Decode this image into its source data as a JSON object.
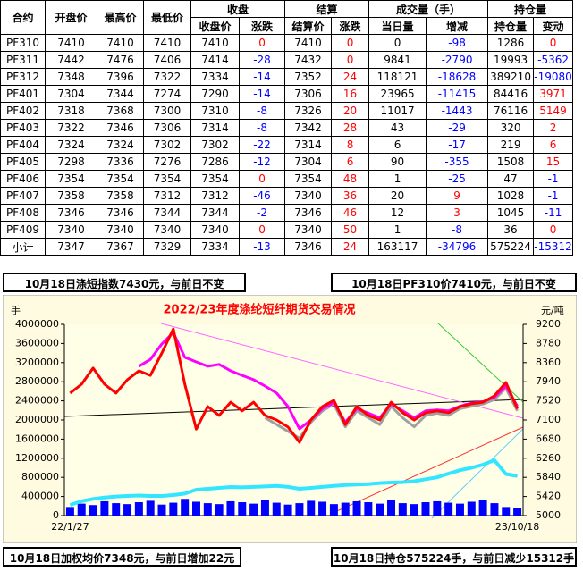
{
  "table": {
    "header_top": [
      "合约",
      "开盘价",
      "最高价",
      "最低价",
      "收盘",
      "结算",
      "成交量（手）",
      "持仓量"
    ],
    "header_sub": [
      "收盘价",
      "涨跌",
      "结算价",
      "涨跌",
      "当日量",
      "增减",
      "持仓量",
      "变动"
    ],
    "up_color": "#ff0000",
    "down_color": "#0000ff",
    "rows": [
      [
        "PF310",
        7410,
        7410,
        7410,
        7410,
        0,
        7410,
        0,
        0,
        -98,
        1286,
        0
      ],
      [
        "PF311",
        7442,
        7476,
        7406,
        7414,
        -28,
        7432,
        0,
        9841,
        -2790,
        19993,
        -5362
      ],
      [
        "PF312",
        7348,
        7396,
        7322,
        7334,
        -14,
        7352,
        24,
        118121,
        -18628,
        389210,
        -19080
      ],
      [
        "PF401",
        7304,
        7344,
        7274,
        7290,
        -14,
        7306,
        16,
        23965,
        -11415,
        84416,
        3971
      ],
      [
        "PF402",
        7318,
        7368,
        7300,
        7310,
        -8,
        7326,
        20,
        11017,
        -1443,
        76116,
        5149
      ],
      [
        "PF403",
        7322,
        7346,
        7306,
        7314,
        -8,
        7342,
        28,
        43,
        -29,
        320,
        2
      ],
      [
        "PF404",
        7324,
        7324,
        7302,
        7302,
        -22,
        7314,
        8,
        6,
        -17,
        219,
        6
      ],
      [
        "PF405",
        7298,
        7336,
        7276,
        7286,
        -12,
        7304,
        6,
        90,
        -355,
        1508,
        15
      ],
      [
        "PF406",
        7354,
        7354,
        7354,
        7354,
        0,
        7354,
        48,
        1,
        -25,
        47,
        -1
      ],
      [
        "PF407",
        7358,
        7358,
        7312,
        7312,
        -46,
        7340,
        36,
        20,
        9,
        1028,
        -1
      ],
      [
        "PF408",
        7346,
        7346,
        7344,
        7344,
        -2,
        7346,
        46,
        12,
        3,
        1045,
        -11
      ],
      [
        "PF409",
        7340,
        7340,
        7340,
        7340,
        0,
        7340,
        50,
        1,
        -8,
        36,
        0
      ],
      [
        "小计",
        7347,
        7367,
        7329,
        7334,
        -13,
        7346,
        24,
        163117,
        -34796,
        575224,
        -15312
      ]
    ]
  },
  "notes": [
    "10月18日涤短指数7430元，与前日不变",
    "10月18日PF310价7410元，与前日不变",
    "10月18日加权均价7348元，与前日增加22元",
    "10月18日持仓575224手，与前日减少15312手"
  ],
  "chart_data": {
    "type": "line",
    "title": "2022/23年度涤纶短纤期货交易情况",
    "y_unit": "手",
    "y2_unit": "元/吨",
    "categories": [
      "22/1/27",
      null,
      null,
      null,
      null,
      null,
      null,
      null,
      null,
      null,
      null,
      null,
      null,
      null,
      null,
      null,
      null,
      null,
      null,
      null,
      null,
      null,
      null,
      null,
      null,
      null,
      null,
      null,
      null,
      null,
      null,
      null,
      null,
      null,
      null,
      null,
      null,
      null,
      null,
      "23/10/18"
    ],
    "ylim": [
      0,
      4000000
    ],
    "yticks": [
      0,
      400000,
      800000,
      1200000,
      1600000,
      2000000,
      2400000,
      2800000,
      3200000,
      3600000,
      4000000
    ],
    "y2lim": [
      5000,
      9200
    ],
    "y2ticks": [
      5000,
      5420,
      5840,
      6260,
      6680,
      7100,
      7520,
      7940,
      8360,
      8780,
      9200
    ],
    "series": [
      {
        "type": "bar",
        "color": "#0000ff",
        "values": [
          180000,
          250000,
          220000,
          300000,
          260000,
          240000,
          280000,
          310000,
          230000,
          270000,
          350000,
          290000,
          260000,
          240000,
          300000,
          280000,
          250000,
          320000,
          270000,
          230000,
          260000,
          310000,
          290000,
          240000,
          270000,
          300000,
          280000,
          250000,
          330000,
          260000,
          240000,
          280000,
          300000,
          270000,
          250000,
          290000,
          320000,
          260000,
          180000,
          163117
        ]
      },
      {
        "type": "line",
        "color": "#33e6ff",
        "width": 4,
        "values": [
          224000,
          300000,
          350000,
          380000,
          400000,
          411000,
          420000,
          411000,
          411000,
          430000,
          460000,
          542000,
          560000,
          580000,
          598000,
          590000,
          600000,
          610000,
          620000,
          600000,
          560000,
          580000,
          600000,
          620000,
          640000,
          650000,
          660000,
          680000,
          692000,
          700000,
          720000,
          760000,
          800000,
          878000,
          950000,
          1000000,
          1065000,
          1159000,
          870000,
          830000
        ]
      },
      {
        "type": "line",
        "axis": "y2",
        "color": "#a0a0a0",
        "width": 3,
        "values": [
          null,
          null,
          null,
          null,
          null,
          null,
          null,
          null,
          null,
          null,
          null,
          null,
          null,
          null,
          null,
          null,
          null,
          7150,
          7000,
          6850,
          6700,
          7050,
          7300,
          7450,
          6950,
          7300,
          7150,
          7000,
          7400,
          7150,
          6950,
          7200,
          7250,
          7200,
          7350,
          7400,
          7450,
          7550,
          7800,
          7300
        ]
      },
      {
        "type": "line",
        "axis": "y2",
        "color": "#ff00ff",
        "width": 3,
        "values": [
          null,
          null,
          null,
          null,
          null,
          null,
          8280,
          8430,
          8770,
          9020,
          8475,
          8375,
          8280,
          8320,
          8180,
          8080,
          7985,
          7845,
          7690,
          7395,
          6905,
          7100,
          7350,
          7480,
          7050,
          7350,
          7250,
          7150,
          7450,
          7300,
          7150,
          7300,
          7320,
          7300,
          7400,
          7470,
          7500,
          7600,
          7850,
          7400
        ]
      },
      {
        "type": "line",
        "axis": "y2",
        "color": "#ff0000",
        "width": 3,
        "values": [
          7690,
          7885,
          8240,
          7885,
          7690,
          7985,
          8180,
          8080,
          8570,
          9100,
          7885,
          6900,
          7395,
          7200,
          7490,
          7300,
          7490,
          7200,
          7100,
          6945,
          6610,
          7100,
          7395,
          7530,
          7000,
          7395,
          7200,
          7100,
          7490,
          7260,
          7100,
          7260,
          7300,
          7260,
          7395,
          7455,
          7490,
          7630,
          7925,
          7346
        ]
      }
    ]
  }
}
